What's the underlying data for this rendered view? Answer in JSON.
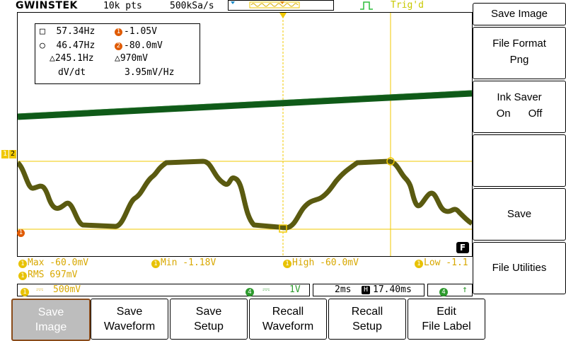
{
  "header": {
    "brand": "GWINSTEK",
    "record_length": "10k pts",
    "sample_rate": "500kSa/s",
    "trigger_status": "Trig'd"
  },
  "cursor_readout": {
    "rows": [
      {
        "left": "57.34Hz",
        "right": "-1.05V",
        "left_mark": "□",
        "right_mark": "1"
      },
      {
        "left": "46.47Hz",
        "right": "-80.0mV",
        "left_mark": "○",
        "right_mark": "2"
      },
      {
        "left": "245.1Hz",
        "right": "970mV",
        "left_mark": "△",
        "right_mark": "△"
      }
    ],
    "dvdt_label": "dV/dt",
    "dvdt_value": "3.95mV/Hz"
  },
  "channel_markers": {
    "ch1": "1",
    "ch2": "2",
    "ch1_ground": "1"
  },
  "filter_badge": "F",
  "measurements": {
    "max": "Max -60.0mV",
    "min": "Min -1.18V",
    "high": "High -60.0mV",
    "low": "Low -1.1",
    "rms": "RMS 697mV"
  },
  "status_bar": {
    "ch1_num": "1",
    "ch1_scale": "500mV",
    "ch4_num": "4",
    "ch4_scale": "1V",
    "timebase": "2ms",
    "delay": "17.40ms",
    "trig_ch": "4",
    "trig_slope": "↑"
  },
  "side_menu": {
    "title": "Save Image",
    "file_format_label": "File Format",
    "file_format_value": "Png",
    "ink_saver_label": "Ink Saver",
    "ink_on": "On",
    "ink_off": "Off",
    "save_label": "Save",
    "file_utilities_label": "File Utilities"
  },
  "bottom_menu": [
    {
      "line1": "Save",
      "line2": "Image"
    },
    {
      "line1": "Save",
      "line2": "Waveform"
    },
    {
      "line1": "Save",
      "line2": "Setup"
    },
    {
      "line1": "Recall",
      "line2": "Waveform"
    },
    {
      "line1": "Recall",
      "line2": "Setup"
    },
    {
      "line1": "Edit",
      "line2": "File Label"
    }
  ],
  "colors": {
    "ch1_trace": "#5a5a10",
    "ch2_trace": "#0f5a18",
    "cursor": "#f0c800",
    "accent_orange": "#e05a00"
  }
}
